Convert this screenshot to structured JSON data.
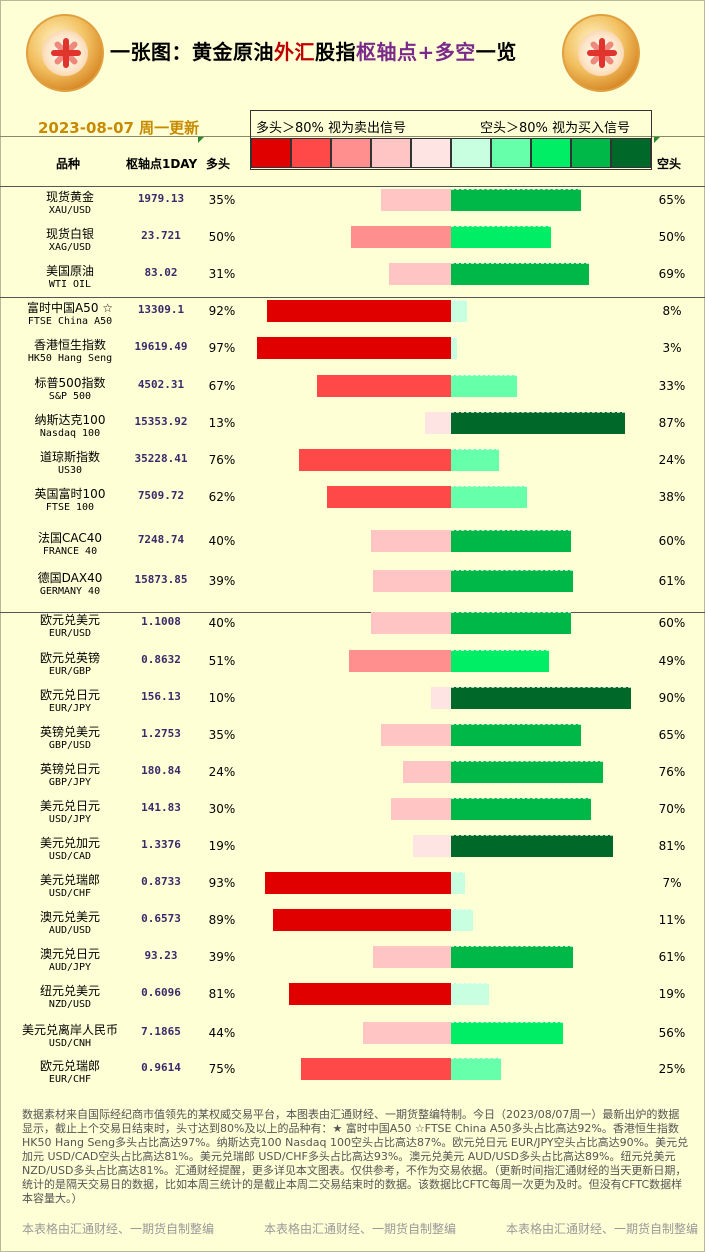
{
  "header": {
    "title_parts": [
      "一张图：黄金原油",
      "外汇",
      "股指",
      "枢轴点+多空",
      "一览"
    ],
    "date": "2023-08-07 周一更新",
    "legend_sell": "多头＞80% 视为卖出信号",
    "legend_buy": "空头＞80% 视为买入信号",
    "col_name": "品种",
    "col_pivot": "枢轴点1DAY",
    "col_long": "多头",
    "col_short": "空头"
  },
  "colors": {
    "long_scale": [
      "#e00000",
      "#ff4848",
      "#ff8e8e",
      "#ffc4c4",
      "#ffe4e4"
    ],
    "short_scale": [
      "#c8ffe0",
      "#66ffaa",
      "#00ee66",
      "#00b848",
      "#006828"
    ]
  },
  "chart_data": {
    "type": "bar",
    "orientation": "horizontal-diverging",
    "series": [
      {
        "name": "多头",
        "unit": "%"
      },
      {
        "name": "空头",
        "unit": "%"
      }
    ],
    "rows": [
      {
        "name": "现货黄金",
        "code": "XAU/USD",
        "pivot": "1979.13",
        "long": 35,
        "short": 65
      },
      {
        "name": "现货白银",
        "code": "XAG/USD",
        "pivot": "23.721",
        "long": 50,
        "short": 50
      },
      {
        "name": "美国原油",
        "code": "WTI OIL",
        "pivot": "83.02",
        "long": 31,
        "short": 69
      },
      {
        "name": "富时中国A50 ☆",
        "code": "FTSE China A50",
        "pivot": "13309.1",
        "long": 92,
        "short": 8
      },
      {
        "name": "香港恒生指数",
        "code": "HK50 Hang Seng",
        "pivot": "19619.49",
        "long": 97,
        "short": 3
      },
      {
        "name": "标普500指数",
        "code": "S&P 500",
        "pivot": "4502.31",
        "long": 67,
        "short": 33
      },
      {
        "name": "纳斯达克100",
        "code": "Nasdaq 100",
        "pivot": "15353.92",
        "long": 13,
        "short": 87
      },
      {
        "name": "道琼斯指数",
        "code": "US30",
        "pivot": "35228.41",
        "long": 76,
        "short": 24
      },
      {
        "name": "英国富时100",
        "code": "FTSE 100",
        "pivot": "7509.72",
        "long": 62,
        "short": 38
      },
      {
        "name": "法国CAC40",
        "code": "FRANCE 40",
        "pivot": "7248.74",
        "long": 40,
        "short": 60
      },
      {
        "name": "德国DAX40",
        "code": "GERMANY 40",
        "pivot": "15873.85",
        "long": 39,
        "short": 61
      },
      {
        "name": "欧元兑美元",
        "code": "EUR/USD",
        "pivot": "1.1008",
        "long": 40,
        "short": 60
      },
      {
        "name": "欧元兑英镑",
        "code": "EUR/GBP",
        "pivot": "0.8632",
        "long": 51,
        "short": 49
      },
      {
        "name": "欧元兑日元",
        "code": "EUR/JPY",
        "pivot": "156.13",
        "long": 10,
        "short": 90
      },
      {
        "name": "英镑兑美元",
        "code": "GBP/USD",
        "pivot": "1.2753",
        "long": 35,
        "short": 65
      },
      {
        "name": "英镑兑日元",
        "code": "GBP/JPY",
        "pivot": "180.84",
        "long": 24,
        "short": 76
      },
      {
        "name": "美元兑日元",
        "code": "USD/JPY",
        "pivot": "141.83",
        "long": 30,
        "short": 70
      },
      {
        "name": "美元兑加元",
        "code": "USD/CAD",
        "pivot": "1.3376",
        "long": 19,
        "short": 81
      },
      {
        "name": "美元兑瑞郎",
        "code": "USD/CHF",
        "pivot": "0.8733",
        "long": 93,
        "short": 7
      },
      {
        "name": "澳元兑美元",
        "code": "AUD/USD",
        "pivot": "0.6573",
        "long": 89,
        "short": 11
      },
      {
        "name": "澳元兑日元",
        "code": "AUD/JPY",
        "pivot": "93.23",
        "long": 39,
        "short": 61
      },
      {
        "name": "纽元兑美元",
        "code": "NZD/USD",
        "pivot": "0.6096",
        "long": 81,
        "short": 19
      },
      {
        "name": "美元兑离岸人民币",
        "code": "USD/CNH",
        "pivot": "7.1865",
        "long": 44,
        "short": 56
      },
      {
        "name": "欧元兑瑞郎",
        "code": "EUR/CHF",
        "pivot": "0.9614",
        "long": 75,
        "short": 25
      }
    ]
  },
  "note": "数据素材来自国际经纪商市值领先的某权威交易平台，本图表由汇通财经、一期货整编特制。今日（2023/08/07周一）最新出炉的数据显示，截止上个交易日结束时，头寸达到80%及以上的品种有：★ 富时中国A50 ☆FTSE China A50多头占比高达92%。香港恒生指数 HK50 Hang Seng多头占比高达97%。纳斯达克100 Nasdaq 100空头占比高达87%。欧元兑日元 EUR/JPY空头占比高达90%。美元兑加元 USD/CAD空头占比高达81%。美元兑瑞郎 USD/CHF多头占比高达93%。澳元兑美元 AUD/USD多头占比高达89%。纽元兑美元 NZD/USD多头占比高达81%。汇通财经提醒，更多详见本文图表。仅供参考，不作为交易依据。（更新时间指汇通财经的当天更新日期，统计的是隔天交易日的数据，比如本周三统计的是截止本周二交易结束时的数据。该数据比CFTC每周一次更为及时。但没有CFTC数据样本容量大。）",
  "footer": [
    "本表格由汇通财经、一期货自制整编",
    "本表格由汇通财经、一期货自制整编",
    "本表格由汇通财经、一期货自制整编"
  ]
}
